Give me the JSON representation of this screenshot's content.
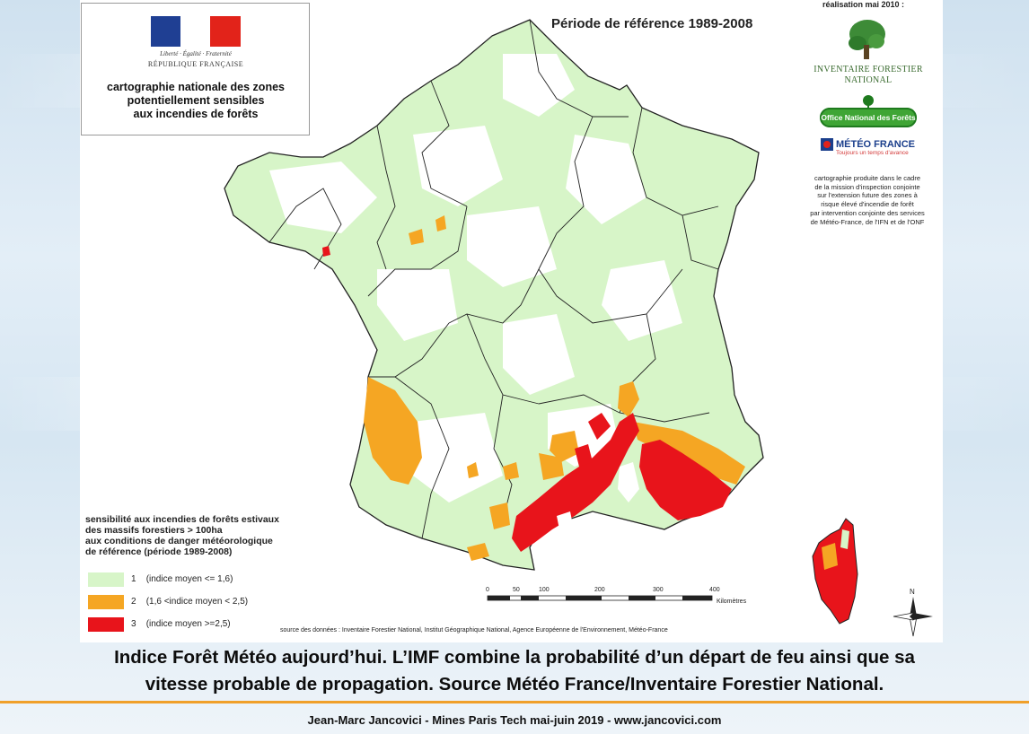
{
  "logo_block": {
    "motto": "Liberté · Égalité · Fraternité",
    "republic": "RÉPUBLIQUE FRANÇAISE",
    "title_lines": [
      "cartographie nationale des zones",
      "potentiellement sensibles",
      "aux incendies de forêts"
    ]
  },
  "map_title": "Période de référence 1989-2008",
  "credits": {
    "realisation": "réalisation mai 2010 :",
    "ifn_lines": [
      "INVENTAIRE FORESTIER",
      "NATIONAL"
    ],
    "onf": "Office National des Forêts",
    "meteo_name": "MÉTÉO FRANCE",
    "meteo_tagline": "Toujours un temps d'avance",
    "note_lines": [
      "cartographie produite dans le cadre",
      "de la mission d'inspection conjointe",
      "sur l'extension future des zones à",
      "risque élevé d'incendie de forêt",
      "par intervention conjointe des services",
      "de Météo-France, de l'IFN et de l'ONF"
    ]
  },
  "legend": {
    "title_lines": [
      "sensibilité aux incendies de forêts estivaux",
      "des massifs forestiers > 100ha",
      "aux conditions de danger météorologique",
      "de référence (période 1989-2008)"
    ],
    "items": [
      {
        "num": "1",
        "range": "(indice moyen <= 1,6)",
        "color": "#d7f5c8"
      },
      {
        "num": "2",
        "range": "(1,6 <indice moyen < 2,5)",
        "color": "#f5a623"
      },
      {
        "num": "3",
        "range": "(indice moyen >=2,5)",
        "color": "#e8141b"
      }
    ]
  },
  "scale": {
    "ticks": [
      "0",
      "50",
      "100",
      "200",
      "300",
      "400"
    ],
    "unit": "Kilomètres"
  },
  "north_label": "N",
  "source": "source des données : Inventaire Forestier National, Institut Géographique National, Agence Européenne de l'Environnement, Météo-France",
  "caption_lines": [
    "Indice Forêt Météo aujourd’hui. L’IMF combine la probabilité d’un départ de feu ainsi que sa",
    "vitesse probable de propagation. Source Météo France/Inventaire Forestier National."
  ],
  "footer": "Jean-Marc Jancovici - Mines Paris Tech mai-juin 2019 - www.jancovici.com",
  "colors": {
    "land": "#ffffff",
    "forest_low": "#d7f5c8",
    "forest_mid": "#f5a623",
    "forest_high": "#e8141b",
    "accent_rule": "#f0a02a"
  }
}
